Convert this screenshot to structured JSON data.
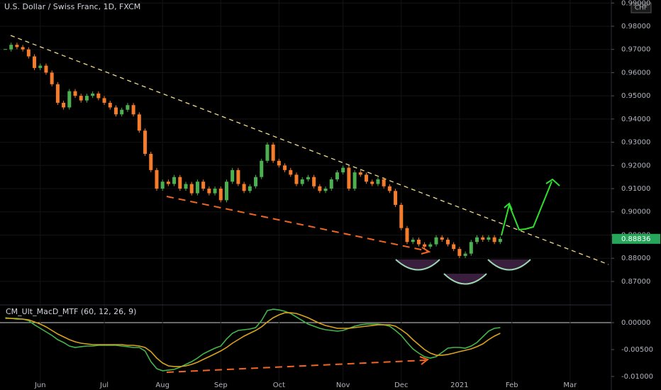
{
  "chart_data": [
    {
      "type": "candlestick",
      "title": "U.S. Dollar / Swiss Franc, 1D, FXCM",
      "currency": "CHF",
      "categories": [
        null,
        null,
        null,
        null,
        null,
        null,
        "Jun",
        null,
        null,
        null,
        null,
        null,
        null,
        null,
        null,
        null,
        null,
        "Jul",
        null,
        null,
        null,
        null,
        null,
        null,
        null,
        null,
        null,
        "Aug",
        null,
        null,
        null,
        null,
        null,
        null,
        null,
        null,
        null,
        "Sep",
        null,
        null,
        null,
        null,
        null,
        null,
        null,
        null,
        null,
        "Oct",
        null,
        null,
        null,
        null,
        null,
        null,
        null,
        null,
        null,
        null,
        "Nov",
        null,
        null,
        null,
        null,
        null,
        null,
        null,
        null,
        null,
        "Dec",
        null,
        null,
        null,
        null,
        null,
        null,
        null,
        null,
        null,
        "2021",
        null,
        null,
        null,
        null,
        null,
        null,
        null,
        null,
        "Feb",
        null,
        null,
        null,
        null,
        null,
        null,
        null,
        null,
        null,
        "Mar",
        null,
        null,
        null,
        null,
        null
      ],
      "values": [
        0.97,
        0.972,
        0.971,
        0.97,
        0.967,
        0.962,
        0.963,
        0.96,
        0.955,
        0.947,
        0.945,
        0.952,
        0.95,
        0.948,
        0.95,
        0.951,
        0.949,
        0.947,
        0.945,
        0.942,
        0.944,
        0.946,
        0.942,
        0.935,
        0.925,
        0.918,
        0.91,
        0.913,
        0.912,
        0.915,
        0.91,
        0.912,
        0.908,
        0.913,
        0.91,
        0.908,
        0.91,
        0.905,
        0.913,
        0.918,
        0.912,
        0.909,
        0.911,
        0.915,
        0.922,
        0.929,
        0.922,
        0.92,
        0.918,
        0.916,
        0.912,
        0.914,
        0.915,
        0.911,
        0.909,
        0.91,
        0.914,
        0.917,
        0.919,
        0.91,
        0.917,
        0.916,
        0.913,
        0.912,
        0.914,
        0.911,
        0.909,
        0.903,
        0.893,
        0.887,
        0.888,
        0.886,
        0.885,
        0.886,
        0.889,
        0.888,
        0.886,
        0.884,
        0.881,
        0.882,
        0.887,
        0.889,
        0.888,
        0.889,
        0.887,
        0.88836,
        null,
        null,
        null,
        null,
        null,
        null,
        null,
        null,
        null,
        null,
        null,
        null,
        null,
        null,
        null,
        null,
        null
      ],
      "up_color": "#4caf50",
      "down_color": "#f57c2a",
      "last_color": "#26a65b",
      "ylim": [
        0.8605,
        0.9913
      ],
      "yticks": [
        {
          "value": 0.87,
          "label": "0.87000"
        },
        {
          "value": 0.88,
          "label": "0.88000"
        },
        {
          "value": 0.89,
          "label": "0.89000"
        },
        {
          "value": 0.9,
          "label": "0.90000"
        },
        {
          "value": 0.91,
          "label": "0.91000"
        },
        {
          "value": 0.92,
          "label": "0.92000"
        },
        {
          "value": 0.93,
          "label": "0.93000"
        },
        {
          "value": 0.94,
          "label": "0.94000"
        },
        {
          "value": 0.95,
          "label": "0.95000"
        },
        {
          "value": 0.96,
          "label": "0.96000"
        },
        {
          "value": 0.97,
          "label": "0.97000"
        },
        {
          "value": 0.98,
          "label": "0.98000"
        },
        {
          "value": 0.99,
          "label": "0.99000"
        }
      ],
      "grid": true
    },
    {
      "type": "line",
      "title": "CM_Ult_MacD_MTF (60, 12, 26, 9)",
      "series": [
        {
          "color": "#43b54a",
          "values": [
            0.00092,
            0.00079,
            0.00079,
            0.00066,
            0.00039,
            -0.0004,
            -0.00105,
            -0.00171,
            -0.00237,
            -0.00316,
            -0.00368,
            -0.00434,
            -0.00461,
            -0.00447,
            -0.00434,
            -0.00434,
            -0.00421,
            -0.00421,
            -0.00421,
            -0.00421,
            -0.00434,
            -0.00447,
            -0.00461,
            -0.00461,
            -0.00526,
            -0.00724,
            -0.00855,
            -0.00895,
            -0.00882,
            -0.00868,
            -0.00829,
            -0.00776,
            -0.00724,
            -0.00658,
            -0.00579,
            -0.00526,
            -0.00474,
            -0.00434,
            -0.00303,
            -0.00197,
            -0.00145,
            -0.00132,
            -0.00118,
            -0.00092,
            0.00039,
            0.00224,
            0.0025,
            0.00237,
            0.00211,
            0.00171,
            0.00105,
            0.00039,
            -0.00026,
            -0.00066,
            -0.00105,
            -0.00132,
            -0.00145,
            -0.00158,
            -0.00145,
            -0.00105,
            -0.00066,
            -0.0004,
            -0.00026,
            -0.00026,
            -0.00026,
            -0.0004,
            -0.00066,
            -0.00145,
            -0.00237,
            -0.00368,
            -0.00487,
            -0.00566,
            -0.00632,
            -0.00658,
            -0.00632,
            -0.00553,
            -0.00474,
            -0.00461,
            -0.00461,
            -0.00474,
            -0.00434,
            -0.00368,
            -0.00263,
            -0.00158,
            -0.00105,
            -0.00092
          ]
        },
        {
          "color": "#d9a21b",
          "values": [
            0.00079,
            0.00079,
            0.00066,
            0.00066,
            0.00053,
            0.00013,
            -0.00026,
            -0.00079,
            -0.00145,
            -0.00211,
            -0.00263,
            -0.00316,
            -0.00355,
            -0.00382,
            -0.00395,
            -0.00408,
            -0.00408,
            -0.00408,
            -0.00408,
            -0.00408,
            -0.00408,
            -0.00421,
            -0.00421,
            -0.00434,
            -0.00461,
            -0.00539,
            -0.00658,
            -0.0075,
            -0.00803,
            -0.00816,
            -0.00816,
            -0.00803,
            -0.00776,
            -0.00737,
            -0.00684,
            -0.00632,
            -0.00579,
            -0.00526,
            -0.00461,
            -0.00382,
            -0.00316,
            -0.0025,
            -0.00197,
            -0.00145,
            -0.00079,
            0.00013,
            0.00092,
            0.00145,
            0.00184,
            0.00184,
            0.00171,
            0.00132,
            0.00092,
            0.00039,
            -0.00013,
            -0.00053,
            -0.00079,
            -0.00105,
            -0.00105,
            -0.00105,
            -0.00092,
            -0.00079,
            -0.00066,
            -0.00053,
            -0.0004,
            -0.0004,
            -0.0004,
            -0.00066,
            -0.00132,
            -0.00211,
            -0.00316,
            -0.00408,
            -0.005,
            -0.00566,
            -0.00605,
            -0.00605,
            -0.00592,
            -0.00566,
            -0.00539,
            -0.00513,
            -0.00487,
            -0.00447,
            -0.00395,
            -0.00316,
            -0.0025,
            -0.00197
          ]
        }
      ],
      "ylim": [
        -0.0112,
        0.0033
      ],
      "yticks": [
        {
          "value": 0,
          "label": "0.00000"
        },
        {
          "value": -0.005,
          "label": "-0.00500"
        },
        {
          "value": -0.01,
          "label": "-0.01000"
        }
      ],
      "zero_line": true
    }
  ]
}
